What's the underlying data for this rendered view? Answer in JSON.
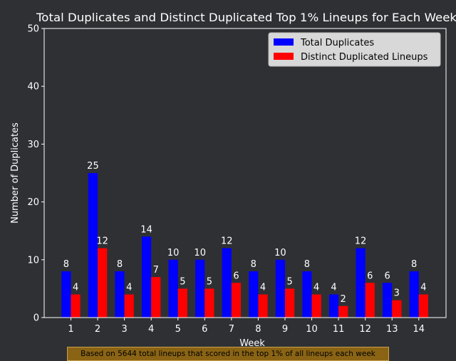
{
  "colors": {
    "background": "#2f3034",
    "axis": "#ffffff",
    "text": "#ffffff",
    "total_series": "#0000ff",
    "distinct_series": "#ff0000",
    "legend_bg": "#d8d8d8",
    "note_bg": "#8a6414"
  },
  "chart_data": {
    "type": "bar",
    "title": "Total Duplicates and Distinct Duplicated Top 1% Lineups for Each Week",
    "xlabel": "Week",
    "ylabel": "Number of Duplicates",
    "ylim": [
      0,
      50
    ],
    "yticks": [
      0,
      10,
      20,
      30,
      40,
      50
    ],
    "grid": false,
    "legend_position": "top-right",
    "categories": [
      "1",
      "2",
      "3",
      "4",
      "5",
      "6",
      "7",
      "8",
      "9",
      "10",
      "11",
      "12",
      "13",
      "14"
    ],
    "series": [
      {
        "name": "Total Duplicates",
        "color": "#0000ff",
        "values": [
          8,
          25,
          8,
          14,
          10,
          10,
          12,
          8,
          10,
          8,
          4,
          12,
          6,
          8
        ]
      },
      {
        "name": "Distinct Duplicated Lineups",
        "color": "#ff0000",
        "values": [
          4,
          12,
          4,
          7,
          5,
          5,
          6,
          4,
          5,
          4,
          2,
          6,
          3,
          4
        ]
      }
    ],
    "annotation": "Based on 5644 total lineups that scored in the top 1% of all lineups each week"
  }
}
